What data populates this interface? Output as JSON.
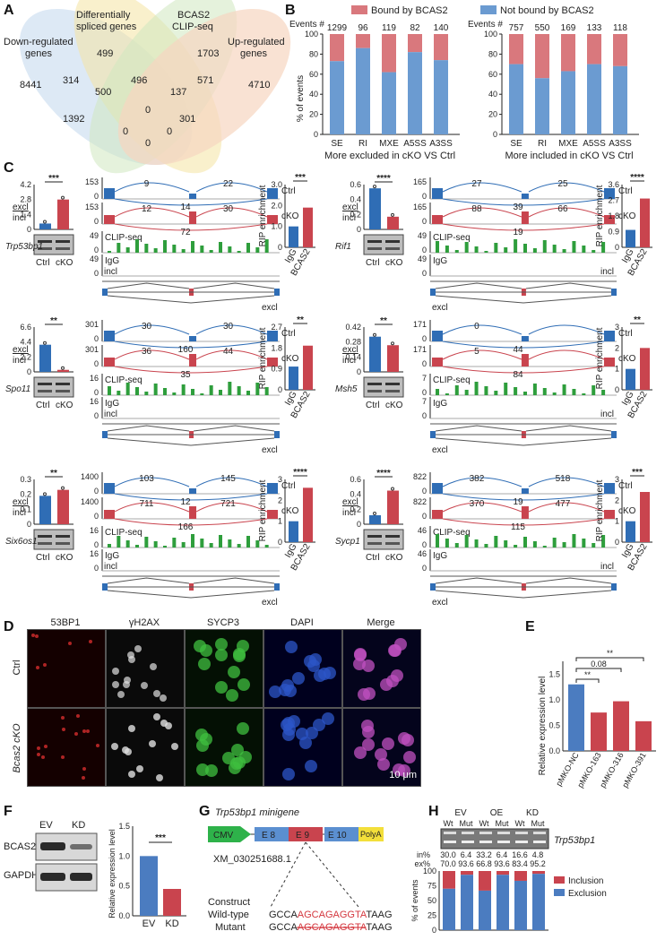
{
  "panels": {
    "A": {
      "letter": "A",
      "sets": [
        "Down-regulated genes",
        "Differentially spliced genes",
        "BCAS2 CLIP-seq",
        "Up-regulated genes"
      ],
      "set_lines": {
        "down": [
          "Down-regulated",
          "genes"
        ],
        "spliced": [
          "Differentially",
          "spliced genes"
        ],
        "clip": [
          "BCAS2",
          "CLIP-seq"
        ],
        "up": [
          "Up-regulated",
          "genes"
        ]
      },
      "counts": [
        "499",
        "1703",
        "314",
        "496",
        "571",
        "8441",
        "4710",
        "500",
        "137",
        "1392",
        "0",
        "301",
        "0",
        "0",
        "0"
      ]
    },
    "B": {
      "letter": "B",
      "legend_bound": "Bound by BCAS2",
      "legend_not": "Not bound by BCAS2",
      "events_label": "Events #",
      "ylabel": "% of events",
      "yticks": [
        "100",
        "80",
        "60",
        "40",
        "20",
        "0"
      ]
    },
    "C": {
      "letter": "C",
      "excl": "excl",
      "incl": "incl",
      "ctrl": "Ctrl",
      "cko": "cKO",
      "clip": "CLIP-seq",
      "igg": "IgG",
      "bcas2": "BCAS2",
      "rip_label": "RIP enrichment",
      "genes": [
        {
          "name": "Trp53bp1",
          "sig_bar": "***",
          "sig_rip": "***",
          "ymax_bar": [
            "4.2",
            "2.8",
            "1.4",
            "0"
          ],
          "rip_ticks": [
            "3.0",
            "2.0",
            "1.0",
            "0"
          ],
          "cov": [
            "153",
            "153",
            "49",
            "49"
          ],
          "ctrl_up": "9",
          "ctrl_right": "22",
          "ctrl_low": "14",
          "cko_left": "12",
          "cko_right": "30",
          "cko_low": "72"
        },
        {
          "name": "Rif1",
          "sig_bar": "****",
          "sig_rip": "****",
          "ymax_bar": [
            "0.6",
            "0.4",
            "0.2",
            "0"
          ],
          "rip_ticks": [
            "3.6",
            "2.7",
            "1.8",
            "0.9",
            "0"
          ],
          "cov": [
            "165",
            "165",
            "49",
            "49"
          ],
          "ctrl_up": "27",
          "ctrl_right": "25",
          "ctrl_low": "39",
          "cko_left": "88",
          "cko_right": "66",
          "cko_low": "19"
        },
        {
          "name": "Spo11",
          "sig_bar": "**",
          "sig_rip": "**",
          "ymax_bar": [
            "6.6",
            "4.4",
            "2.2",
            "0"
          ],
          "rip_ticks": [
            "2.7",
            "1.8",
            "0.9",
            "0"
          ],
          "cov": [
            "301",
            "301",
            "16",
            "16"
          ],
          "ctrl_up": "30",
          "ctrl_right": "30",
          "ctrl_low": "160",
          "cko_left": "36",
          "cko_right": "44",
          "cko_low": "35"
        },
        {
          "name": "Msh5",
          "sig_bar": "**",
          "sig_rip": "**",
          "ymax_bar": [
            "0.42",
            "0.28",
            "0.14",
            "0"
          ],
          "rip_ticks": [
            "3",
            "2",
            "1",
            "0"
          ],
          "cov": [
            "171",
            "171",
            "7",
            "7"
          ],
          "ctrl_up": "0",
          "ctrl_right": "",
          "ctrl_low": "44",
          "cko_left": "5",
          "cko_right": "",
          "cko_low": "84"
        },
        {
          "name": "Six6os1",
          "sig_bar": "**",
          "sig_rip": "****",
          "ymax_bar": [
            "0.3",
            "0.2",
            "0.1",
            "0"
          ],
          "rip_ticks": [
            "3",
            "2",
            "1",
            "0"
          ],
          "cov": [
            "1400",
            "1400",
            "16",
            "16"
          ],
          "ctrl_up": "103",
          "ctrl_right": "145",
          "ctrl_low": "12",
          "cko_left": "711",
          "cko_right": "721",
          "cko_low": "166"
        },
        {
          "name": "Sycp1",
          "sig_bar": "****",
          "sig_rip": "***",
          "ymax_bar": [
            "0.6",
            "0.4",
            "0.2",
            "0"
          ],
          "rip_ticks": [
            "3",
            "2",
            "1",
            "0"
          ],
          "cov": [
            "822",
            "822",
            "46",
            "46"
          ],
          "ctrl_up": "382",
          "ctrl_right": "518",
          "ctrl_low": "19",
          "cko_left": "370",
          "cko_right": "477",
          "cko_low": "115"
        }
      ]
    },
    "D": {
      "letter": "D",
      "cols": [
        "53BP1",
        "γH2AX",
        "SYCP3",
        "DAPI",
        "Merge"
      ],
      "rows": [
        "Ctrl",
        "Bcas2 cKO"
      ],
      "scale": "10 μm"
    },
    "E": {
      "letter": "E",
      "ylabel": "Relative expression level",
      "yticks": [
        "1.5",
        "1.0",
        "0.5",
        "0.0"
      ],
      "pvals": [
        "**",
        "0.08",
        "**"
      ]
    },
    "F": {
      "letter": "F",
      "blot_labels": [
        "EV",
        "KD"
      ],
      "rows": [
        "BCAS2",
        "GAPDH"
      ],
      "sig": "***",
      "ylabel": "Relative expression level",
      "yticks": [
        "1.5",
        "1.0",
        "0.5",
        "0.0"
      ]
    },
    "G": {
      "letter": "G",
      "title": "Trp53bp1 minigene",
      "blocks": [
        "CMV",
        "E 8",
        "E 9",
        "E 10",
        "PolyA"
      ],
      "accession": "XM_030251688.1",
      "construct": "Construct",
      "wt_label": "Wild-type",
      "mut_label": "Mutant",
      "seq_prefix": "GCCA",
      "seq_mid": "AGCAGAGGTA",
      "seq_suffix": "TAAG"
    },
    "H": {
      "letter": "H",
      "groups": [
        "EV",
        "OE",
        "KD"
      ],
      "sub": [
        "Wt",
        "Mut",
        "Wt",
        "Mut",
        "Wt",
        "Mut"
      ],
      "gene": "Trp53bp1",
      "in_label": "in%",
      "ex_label": "ex%",
      "in_vals": [
        "30.0",
        "6.4",
        "33.2",
        "6.4",
        "16.6",
        "4.8"
      ],
      "ex_vals": [
        "70.0",
        "93.6",
        "66.8",
        "93.6",
        "83.4",
        "95.2"
      ],
      "legend_inc": "Inclusion",
      "legend_exc": "Exclusion",
      "ylabel": "% of events",
      "yticks": [
        "100",
        "75",
        "50",
        "25",
        "0"
      ]
    }
  },
  "chart_data": [
    {
      "type": "bar",
      "title": "More excluded in cKO VS Ctrl",
      "categories": [
        "SE",
        "RI",
        "MXE",
        "A5SS",
        "A3SS"
      ],
      "events": [
        "1299",
        "96",
        "119",
        "82",
        "140"
      ],
      "ylabel": "% of events",
      "ylim": [
        0,
        100
      ],
      "series": [
        {
          "name": "Not bound by BCAS2",
          "values": [
            73,
            86,
            62,
            82,
            74
          ]
        },
        {
          "name": "Bound by BCAS2",
          "values": [
            27,
            14,
            38,
            18,
            26
          ]
        }
      ]
    },
    {
      "type": "bar",
      "title": "More included in cKO VS Ctrl",
      "categories": [
        "SE",
        "RI",
        "MXE",
        "A5SS",
        "A3SS"
      ],
      "events": [
        "757",
        "550",
        "169",
        "133",
        "118"
      ],
      "ylabel": "% of events",
      "ylim": [
        0,
        100
      ],
      "series": [
        {
          "name": "Not bound by BCAS2",
          "values": [
            70,
            56,
            63,
            70,
            68
          ]
        },
        {
          "name": "Bound by BCAS2",
          "values": [
            30,
            44,
            37,
            30,
            32
          ]
        }
      ]
    },
    {
      "type": "bar",
      "categories": [
        "pMKO-NC",
        "pMKO-163",
        "pMKO-316",
        "pMKO-391"
      ],
      "values": [
        1.3,
        0.75,
        0.97,
        0.58
      ],
      "ylabel": "Relative expression level",
      "ylim": [
        0,
        1.75
      ]
    },
    {
      "type": "bar",
      "categories": [
        "EV",
        "KD"
      ],
      "values": [
        1.0,
        0.45
      ],
      "ylabel": "Relative expression level",
      "ylim": [
        0,
        1.5
      ]
    },
    {
      "type": "bar",
      "categories": [
        "EV Wt",
        "EV Mut",
        "OE Wt",
        "OE Mut",
        "KD Wt",
        "KD Mut"
      ],
      "ylabel": "% of events",
      "ylim": [
        0,
        100
      ],
      "series": [
        {
          "name": "Exclusion",
          "values": [
            70.0,
            93.6,
            66.8,
            93.6,
            83.4,
            95.2
          ]
        },
        {
          "name": "Inclusion",
          "values": [
            30.0,
            6.4,
            33.2,
            6.4,
            16.6,
            4.8
          ]
        }
      ]
    }
  ],
  "colors": {
    "blue": "#6b9bd1",
    "red": "#d9787d",
    "dark_blue": "#2f6db5",
    "dark_red": "#c9444e",
    "green": "#2e9e3c"
  }
}
